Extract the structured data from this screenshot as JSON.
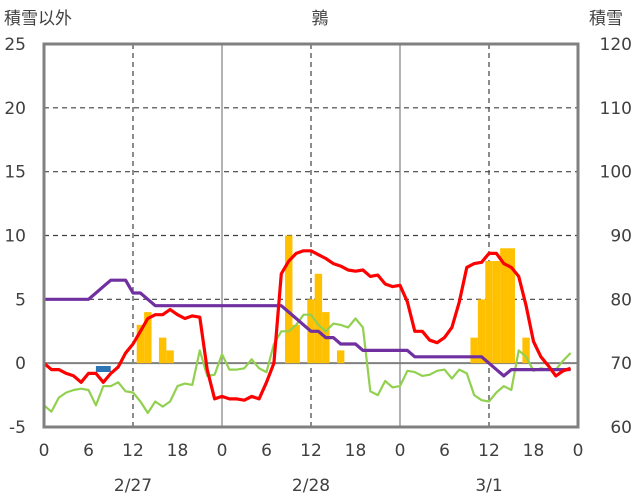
{
  "chart_data": {
    "type": "bar+line",
    "title": "鶉",
    "left_axis_label": "積雪以外",
    "right_axis_label": "積雪",
    "ylim_left": [
      -5,
      25
    ],
    "ylim_right": [
      60,
      120
    ],
    "y_left_ticks": [
      -5,
      0,
      5,
      10,
      15,
      20,
      25
    ],
    "y_right_ticks": [
      60,
      70,
      80,
      90,
      100,
      110,
      120
    ],
    "x_tick_labels": [
      "0",
      "6",
      "12",
      "18",
      "0",
      "6",
      "12",
      "18",
      "0",
      "6",
      "12",
      "18",
      "0"
    ],
    "date_labels": [
      "2/27",
      "2/28",
      "3/1"
    ],
    "grid": true,
    "colors": {
      "precipitation": "#ffc000",
      "temperature": "#ff0000",
      "snow_depth": "#7030a0",
      "other_line": "#92d050",
      "marker": "#2e75b6",
      "axis": "#808080",
      "grid": "#404040"
    },
    "hours": [
      0,
      1,
      2,
      3,
      4,
      5,
      6,
      7,
      8,
      9,
      10,
      11,
      12,
      13,
      14,
      15,
      16,
      17,
      18,
      19,
      20,
      21,
      22,
      23,
      24,
      25,
      26,
      27,
      28,
      29,
      30,
      31,
      32,
      33,
      34,
      35,
      36,
      37,
      38,
      39,
      40,
      41,
      42,
      43,
      44,
      45,
      46,
      47,
      48,
      49,
      50,
      51,
      52,
      53,
      54,
      55,
      56,
      57,
      58,
      59,
      60,
      61,
      62,
      63,
      64,
      65,
      66,
      67,
      68,
      69,
      70,
      71,
      72
    ],
    "precipitation_bars": [
      {
        "hour": 13,
        "value": 3
      },
      {
        "hour": 14,
        "value": 4
      },
      {
        "hour": 16,
        "value": 2
      },
      {
        "hour": 17,
        "value": 1
      },
      {
        "hour": 33,
        "value": 10
      },
      {
        "hour": 34,
        "value": 3
      },
      {
        "hour": 36,
        "value": 5
      },
      {
        "hour": 37,
        "value": 7
      },
      {
        "hour": 38,
        "value": 4
      },
      {
        "hour": 40,
        "value": 1
      },
      {
        "hour": 58,
        "value": 2
      },
      {
        "hour": 59,
        "value": 5
      },
      {
        "hour": 60,
        "value": 8
      },
      {
        "hour": 61,
        "value": 8
      },
      {
        "hour": 62,
        "value": 9
      },
      {
        "hour": 63,
        "value": 9
      },
      {
        "hour": 65,
        "value": 2
      }
    ],
    "series": [
      {
        "name": "",
        "axis": "left",
        "color": "#ff0000",
        "values": [
          0,
          -0.5,
          -0.5,
          -0.8,
          -1,
          -1.5,
          -0.8,
          -0.8,
          -1.5,
          -0.8,
          -0.3,
          0.8,
          1.5,
          2.5,
          3.5,
          3.8,
          3.8,
          4.2,
          3.8,
          3.5,
          3.7,
          3.6,
          -0.5,
          -2.8,
          -2.6,
          -2.8,
          -2.8,
          -2.9,
          -2.6,
          -2.8,
          -1.5,
          0,
          7,
          8,
          8.6,
          8.8,
          8.8,
          8.5,
          8.2,
          7.8,
          7.6,
          7.3,
          7.2,
          7.3,
          6.8,
          6.9,
          6.2,
          6,
          6.1,
          4.8,
          2.5,
          2.5,
          1.8,
          1.6,
          2,
          2.8,
          4.8,
          7.5,
          7.8,
          7.9,
          8.6,
          8.6,
          7.8,
          7.5,
          6.8,
          4.5,
          1.7,
          0.5,
          -0.2,
          -1,
          -0.6,
          -0.4
        ]
      },
      {
        "name": "",
        "axis": "left",
        "color": "#92d050",
        "values": [
          -3.3,
          -3.8,
          -2.7,
          -2.3,
          -2.1,
          -2,
          -2.1,
          -3.3,
          -1.8,
          -1.8,
          -1.5,
          -2.2,
          -2.3,
          -3,
          -3.9,
          -3,
          -3.4,
          -3,
          -1.8,
          -1.6,
          -1.7,
          1,
          -1,
          -0.9,
          0.7,
          -0.5,
          -0.5,
          -0.4,
          0.3,
          -0.4,
          -0.7,
          1.5,
          2.5,
          2.5,
          3,
          3.8,
          3.8,
          3,
          2.5,
          3.1,
          3,
          2.8,
          3.5,
          2.8,
          -2.2,
          -2.5,
          -1.4,
          -1.9,
          -1.8,
          -0.6,
          -0.7,
          -1,
          -0.9,
          -0.6,
          -0.5,
          -1.2,
          -0.5,
          -0.8,
          -2.5,
          -2.9,
          -3,
          -2.3,
          -1.8,
          -2.1,
          1,
          0.5,
          -0.6,
          -0.4,
          -0.5,
          -0.5,
          0.2,
          0.8
        ]
      },
      {
        "name": "",
        "axis": "right",
        "color": "#7030a0",
        "values": [
          80,
          80,
          80,
          80,
          80,
          80,
          80,
          81,
          82,
          83,
          83,
          83,
          81,
          81,
          80,
          79,
          79,
          79,
          79,
          79,
          79,
          79,
          79,
          79,
          79,
          79,
          79,
          79,
          79,
          79,
          79,
          79,
          79,
          78,
          77,
          76,
          75,
          75,
          74,
          74,
          73,
          73,
          73,
          72,
          72,
          72,
          72,
          72,
          72,
          72,
          71,
          71,
          71,
          71,
          71,
          71,
          71,
          71,
          71,
          71,
          70,
          69,
          68,
          69,
          69,
          69,
          69,
          69,
          69,
          69,
          69,
          69
        ]
      }
    ],
    "marker": {
      "hour_start": 7,
      "hour_end": 9,
      "value": -0.3
    }
  }
}
